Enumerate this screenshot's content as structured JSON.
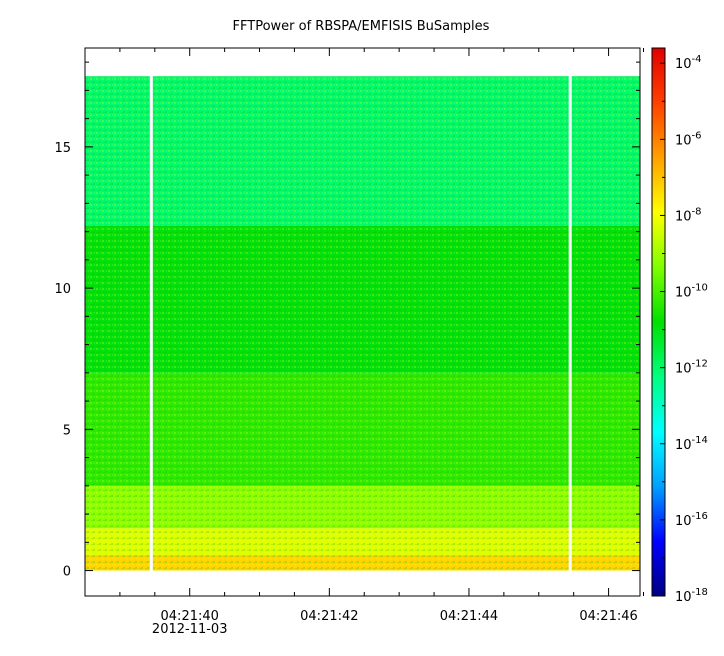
{
  "chart_data": {
    "type": "heatmap",
    "title": "FFTPower of RBSPA/EMFISIS  BuSamples",
    "xlabel": "",
    "ylabel": "",
    "x_ticks": [
      {
        "label": "04:21:40",
        "sublabel": "2012-11-03",
        "value": 40.0
      },
      {
        "label": "04:21:42",
        "sublabel": "",
        "value": 42.0
      },
      {
        "label": "04:21:44",
        "sublabel": "",
        "value": 44.0
      },
      {
        "label": "04:21:46",
        "sublabel": "",
        "value": 46.0
      }
    ],
    "x_minor_ticks": [
      38.5,
      39.0,
      39.5,
      40.5,
      41.0,
      41.5,
      42.5,
      43.0,
      43.5,
      44.5,
      45.0,
      45.5,
      46.5
    ],
    "xlim": [
      38.5,
      46.45
    ],
    "y_ticks": [
      0,
      5,
      10,
      15
    ],
    "ylim": [
      -0.9,
      18.5
    ],
    "data_extent": {
      "x": [
        38.5,
        46.45
      ],
      "y": [
        0,
        17.5
      ]
    },
    "gaps_x": [
      39.45,
      45.45
    ],
    "bands": [
      {
        "y_from": 0.0,
        "y_to": 0.55,
        "log10_power": -7.3
      },
      {
        "y_from": 0.55,
        "y_to": 1.5,
        "log10_power": -8.3
      },
      {
        "y_from": 1.5,
        "y_to": 3.0,
        "log10_power": -9.2
      },
      {
        "y_from": 3.0,
        "y_to": 7.0,
        "log10_power": -10.3
      },
      {
        "y_from": 7.0,
        "y_to": 12.2,
        "log10_power": -10.9
      },
      {
        "y_from": 12.2,
        "y_to": 17.5,
        "log10_power": -12.0
      }
    ],
    "colorbar": {
      "scale": "log",
      "range_log10": [
        -18,
        -3.6
      ],
      "ticks": [
        {
          "base": "10",
          "exp": "-4",
          "value": -4
        },
        {
          "base": "10",
          "exp": "-6",
          "value": -6
        },
        {
          "base": "10",
          "exp": "-8",
          "value": -8
        },
        {
          "base": "10",
          "exp": "-10",
          "value": -10
        },
        {
          "base": "10",
          "exp": "-12",
          "value": -12
        },
        {
          "base": "10",
          "exp": "-14",
          "value": -14
        },
        {
          "base": "10",
          "exp": "-16",
          "value": -16
        },
        {
          "base": "10",
          "exp": "-18",
          "value": -18
        }
      ],
      "colormap": [
        "#00007f",
        "#0000ff",
        "#00a0ff",
        "#00ffff",
        "#00ff80",
        "#00e000",
        "#7fff00",
        "#ffff00",
        "#ffa000",
        "#ff4000",
        "#e00000"
      ]
    },
    "grid": false,
    "legend": "none"
  }
}
